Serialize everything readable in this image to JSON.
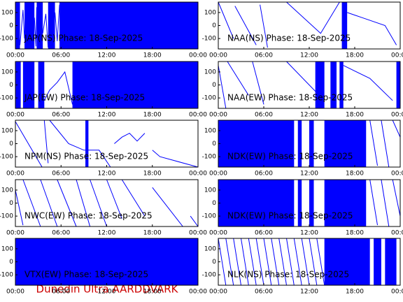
{
  "chart_data": [
    {
      "type": "line",
      "title": "JAP(NS) Phase: 18-Sep-2025",
      "color": "#0000ff",
      "x": [
        0.6,
        1.0,
        1.2,
        null,
        2.5,
        2.7,
        2.8,
        null,
        3.6,
        4.0,
        4.3,
        null,
        5.2,
        5.5,
        5.8
      ],
      "values": [
        -150,
        120,
        -100,
        null,
        60,
        -160,
        140,
        null,
        -60,
        90,
        -170,
        null,
        100,
        -120,
        160
      ],
      "fill_spans": [
        [
          0,
          0.6
        ],
        [
          1.2,
          2.5
        ],
        [
          2.8,
          3.6
        ],
        [
          4.3,
          5.2
        ],
        [
          5.8,
          24
        ]
      ],
      "xlim": [
        0,
        24
      ],
      "ylim": [
        -180,
        180
      ],
      "xticks": [
        {
          "value": 0,
          "label": "00:00"
        },
        {
          "value": 6,
          "label": "06:00"
        },
        {
          "value": 12,
          "label": "12:00"
        },
        {
          "value": 18,
          "label": "18:00"
        },
        {
          "value": 24,
          "label": "00:00"
        }
      ],
      "yticks": [
        100,
        0,
        -100
      ]
    },
    {
      "type": "line",
      "title": "NAA(NS) Phase: 18-Sep-2025",
      "color": "#0000ff",
      "x": [
        0,
        2,
        null,
        2.2,
        5,
        null,
        5.5,
        6.5,
        null,
        9,
        13.5,
        16,
        null,
        17,
        19,
        22,
        23.5
      ],
      "values": [
        180,
        -100,
        null,
        150,
        -150,
        null,
        160,
        -170,
        null,
        180,
        -60,
        180,
        null,
        100,
        60,
        0,
        -150
      ],
      "fill_spans": [
        [
          16.3,
          17
        ]
      ],
      "xlim": [
        0,
        24
      ],
      "ylim": [
        -180,
        180
      ],
      "xticks": [
        {
          "value": 0,
          "label": "00:00"
        },
        {
          "value": 6,
          "label": "06:00"
        },
        {
          "value": 12,
          "label": "12:00"
        },
        {
          "value": 18,
          "label": "18:00"
        },
        {
          "value": 24,
          "label": "00:00"
        }
      ],
      "yticks": [
        100,
        0,
        -100
      ]
    },
    {
      "type": "line",
      "title": "JAP(EW) Phase: 18-Sep-2025",
      "color": "#0000ff",
      "x": [
        3.8,
        4.5,
        5.5,
        6.5,
        7.5
      ],
      "values": [
        -120,
        -40,
        20,
        100,
        -150
      ],
      "fill_spans": [
        [
          0,
          0.7
        ],
        [
          1,
          2.5
        ],
        [
          3,
          3.8
        ],
        [
          7.5,
          24
        ]
      ],
      "xlim": [
        0,
        24
      ],
      "ylim": [
        -180,
        180
      ],
      "xticks": [
        {
          "value": 0,
          "label": "00:00"
        },
        {
          "value": 6,
          "label": "06:00"
        },
        {
          "value": 12,
          "label": "12:00"
        },
        {
          "value": 18,
          "label": "18:00"
        },
        {
          "value": 24,
          "label": "00:00"
        }
      ],
      "yticks": [
        100,
        0,
        -100
      ]
    },
    {
      "type": "line",
      "title": "NAA(EW) Phase: 18-Sep-2025",
      "color": "#0000ff",
      "x": [
        0,
        1,
        null,
        1.2,
        4,
        null,
        4.5,
        6,
        null,
        9,
        13,
        null,
        16.5,
        20,
        23
      ],
      "values": [
        150,
        -180,
        null,
        180,
        -80,
        null,
        180,
        -150,
        null,
        180,
        -60,
        null,
        150,
        50,
        -120
      ],
      "fill_spans": [
        [
          12.8,
          14
        ],
        [
          14.8,
          15.6
        ],
        [
          16,
          16.5
        ],
        [
          23.5,
          24
        ]
      ],
      "xlim": [
        0,
        24
      ],
      "ylim": [
        -180,
        180
      ],
      "xticks": [
        {
          "value": 0,
          "label": "00:00"
        },
        {
          "value": 6,
          "label": "06:00"
        },
        {
          "value": 12,
          "label": "12:00"
        },
        {
          "value": 18,
          "label": "18:00"
        },
        {
          "value": 24,
          "label": "00:00"
        }
      ],
      "yticks": [
        100,
        0,
        -100
      ]
    },
    {
      "type": "line",
      "title": "NPM(NS) Phase: 18-Sep-2025",
      "color": "#0000ff",
      "x": [
        0,
        3.5,
        null,
        3.8,
        4.3,
        null,
        4.5,
        7,
        9,
        11,
        12.5,
        null,
        13,
        14,
        15,
        16,
        17,
        null,
        18,
        19,
        24
      ],
      "values": [
        170,
        -180,
        null,
        180,
        -150,
        null,
        180,
        0,
        -50,
        -50,
        -180,
        null,
        0,
        50,
        80,
        20,
        80,
        null,
        -50,
        -100,
        -180
      ],
      "fill_spans": [
        [
          9.2,
          9.6
        ]
      ],
      "xlim": [
        0,
        24
      ],
      "ylim": [
        -180,
        180
      ],
      "xticks": [
        {
          "value": 0,
          "label": "00:00"
        },
        {
          "value": 6,
          "label": "06:00"
        },
        {
          "value": 12,
          "label": "12:00"
        },
        {
          "value": 18,
          "label": "18:00"
        },
        {
          "value": 24,
          "label": "00:00"
        }
      ],
      "yticks": [
        100,
        0,
        -100
      ]
    },
    {
      "type": "line",
      "title": "NDK(EW) Phase: 18-Sep-2025",
      "color": "#0000ff",
      "x": [
        20,
        21,
        null,
        21.5,
        22.5,
        null,
        23,
        24
      ],
      "values": [
        180,
        -170,
        null,
        180,
        -180,
        null,
        180,
        50
      ],
      "fill_spans": [
        [
          0,
          10
        ],
        [
          10.5,
          11
        ],
        [
          12,
          12.6
        ],
        [
          14,
          19.5
        ]
      ],
      "xlim": [
        0,
        24
      ],
      "ylim": [
        -180,
        180
      ],
      "xticks": [
        {
          "value": 0,
          "label": "00:00"
        },
        {
          "value": 6,
          "label": "06:00"
        },
        {
          "value": 12,
          "label": "12:00"
        },
        {
          "value": 18,
          "label": "18:00"
        },
        {
          "value": 24,
          "label": "00:00"
        }
      ],
      "yticks": [
        100,
        0,
        -100
      ]
    },
    {
      "type": "line",
      "title": "NWC(EW) Phase: 18-Sep-2025",
      "color": "#0000ff",
      "x": [
        0,
        1,
        null,
        1,
        3.3,
        null,
        3.3,
        5.5,
        null,
        5.5,
        8,
        null,
        8,
        9.8,
        null,
        9.8,
        12,
        null,
        12,
        14,
        null,
        14,
        17,
        null,
        18,
        22,
        null,
        23,
        24
      ],
      "values": [
        100,
        -170,
        null,
        180,
        -180,
        null,
        180,
        -180,
        null,
        180,
        -180,
        null,
        180,
        -180,
        null,
        180,
        -180,
        null,
        180,
        -120,
        null,
        180,
        -100,
        null,
        120,
        -180,
        null,
        -100,
        -180
      ],
      "fill_spans": [],
      "xlim": [
        0,
        24
      ],
      "ylim": [
        -180,
        180
      ],
      "xticks": [
        {
          "value": 0,
          "label": "00:00"
        },
        {
          "value": 6,
          "label": "06:00"
        },
        {
          "value": 12,
          "label": "12:00"
        },
        {
          "value": 18,
          "label": "18:00"
        },
        {
          "value": 24,
          "label": "00:00"
        }
      ],
      "yticks": [
        100,
        0,
        -100
      ]
    },
    {
      "type": "line",
      "title": "NDK(EW) Phase: 18-Sep-2025",
      "color": "#0000ff",
      "x": [
        20,
        21,
        null,
        21.5,
        22.5,
        null,
        23,
        24
      ],
      "values": [
        180,
        -170,
        null,
        180,
        -180,
        null,
        180,
        -100
      ],
      "fill_spans": [
        [
          0,
          10
        ],
        [
          10.5,
          11
        ],
        [
          12,
          12.6
        ],
        [
          14,
          19.5
        ]
      ],
      "xlim": [
        0,
        24
      ],
      "ylim": [
        -180,
        180
      ],
      "xticks": [
        {
          "value": 0,
          "label": "00:00"
        },
        {
          "value": 6,
          "label": "06:00"
        },
        {
          "value": 12,
          "label": "12:00"
        },
        {
          "value": 18,
          "label": "18:00"
        },
        {
          "value": 24,
          "label": "00:00"
        }
      ],
      "yticks": [
        100,
        0,
        -100
      ]
    },
    {
      "type": "line",
      "title": "VTX(EW) Phase: 18-Sep-2025",
      "color": "#0000ff",
      "x": [],
      "values": [],
      "fill_spans": [
        [
          0,
          24
        ]
      ],
      "xlim": [
        0,
        24
      ],
      "ylim": [
        -180,
        180
      ],
      "xticks": [
        {
          "value": 0,
          "label": "00:00"
        },
        {
          "value": 6,
          "label": "06:00"
        },
        {
          "value": 12,
          "label": "12:00"
        },
        {
          "value": 18,
          "label": "18:00"
        },
        {
          "value": 24,
          "label": "00:00"
        }
      ],
      "yticks": [
        100,
        0,
        -100
      ]
    },
    {
      "type": "line",
      "title": "NLK(NS) Phase: 18-Sep-2025",
      "color": "#0000ff",
      "x": [
        0,
        1,
        null,
        1,
        2,
        null,
        2,
        3,
        null,
        3,
        4,
        null,
        4,
        5,
        null,
        5,
        6,
        null,
        6,
        7,
        null,
        7,
        8,
        null,
        8,
        9,
        null,
        9,
        10,
        null,
        10,
        11,
        null,
        11,
        12,
        null,
        12,
        13,
        null,
        13,
        14
      ],
      "values": [
        180,
        -180,
        null,
        180,
        -180,
        null,
        180,
        -180,
        null,
        180,
        -180,
        null,
        180,
        -180,
        null,
        180,
        -180,
        null,
        180,
        -180,
        null,
        180,
        -180,
        null,
        180,
        -180,
        null,
        180,
        -180,
        null,
        180,
        -180,
        null,
        180,
        -180,
        null,
        180,
        -180,
        null,
        180,
        -180
      ],
      "fill_spans": [
        [
          14,
          20
        ],
        [
          20.5,
          21.5
        ],
        [
          22,
          23.5
        ]
      ],
      "xlim": [
        0,
        24
      ],
      "ylim": [
        -180,
        180
      ],
      "xticks": [
        {
          "value": 0,
          "label": "00:00"
        },
        {
          "value": 6,
          "label": "06:00"
        },
        {
          "value": 12,
          "label": "12:00"
        },
        {
          "value": 18,
          "label": "18:00"
        },
        {
          "value": 24,
          "label": "00:00"
        }
      ],
      "yticks": [
        100,
        0,
        -100
      ]
    }
  ],
  "footer": "Dunedin Ultra AARDDVARK"
}
